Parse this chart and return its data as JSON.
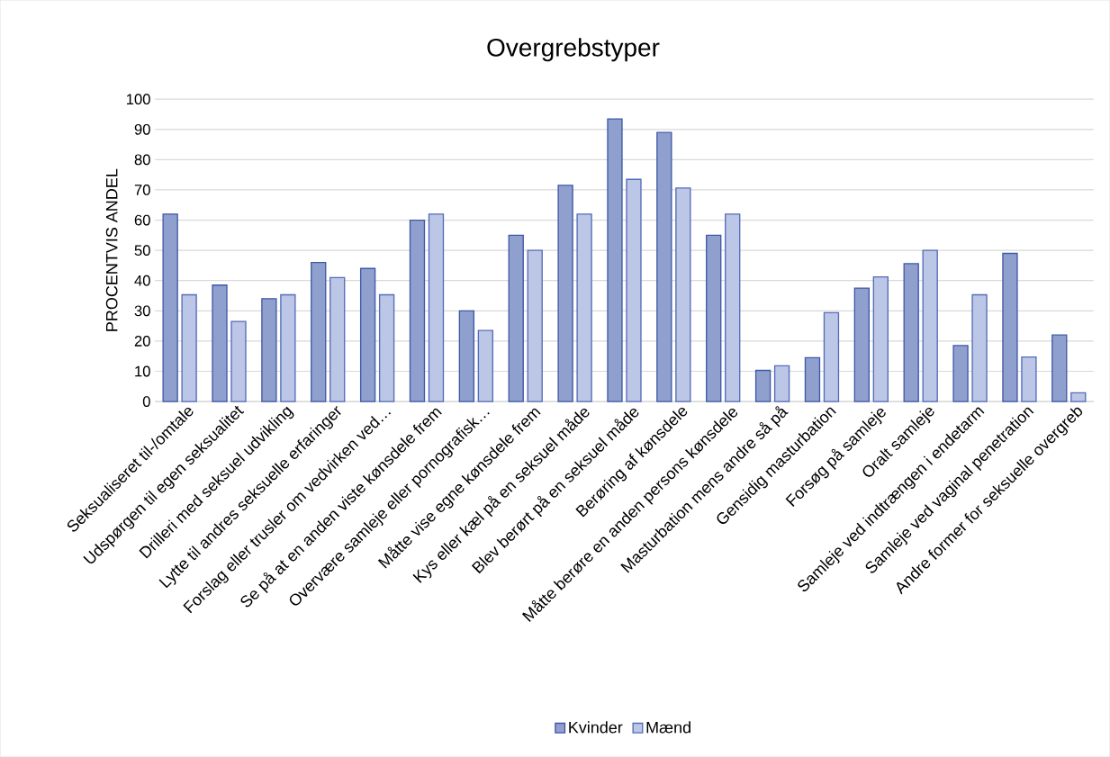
{
  "chart_data": {
    "type": "bar",
    "title": "Overgrebstyper",
    "ylabel": "PROCENTVIS ANDEL",
    "categories": [
      "Seksualiseret til-/omtale",
      "Udspørgen til egen seksualitet",
      "Drilleri med seksuel udvikling",
      "Lytte til andres seksuelle erfaringer",
      "Forslag eller trusler om vedvirken ved…",
      "Se på at en anden viste kønsdele frem",
      "Overvære samleje eller pornografisk…",
      "Måtte vise egne kønsdele frem",
      "Kys eller kæl på en seksuel måde",
      "Blev berørt på en seksuel måde",
      "Berøring af kønsdele",
      "Måtte berøre en anden persons kønsdele",
      "Masturbation mens andre så på",
      "Gensidig masturbation",
      "Forsøg på samleje",
      "Oralt samleje",
      "Samleje ved indtrængen i endetarm",
      "Samleje ved vaginal penetration",
      "Andre former for seksuelle overgreb"
    ],
    "series": [
      {
        "name": "Kvinder",
        "color": "#8fa0cf",
        "values": [
          62,
          38.5,
          34,
          46,
          44,
          60,
          30,
          55,
          71.5,
          93.5,
          89,
          55,
          10.3,
          14.5,
          37.5,
          45.6,
          18.5,
          49,
          22
        ]
      },
      {
        "name": "Mænd",
        "color": "#bcc6e6",
        "values": [
          35.3,
          26.5,
          35.3,
          41,
          35.3,
          62,
          23.5,
          50,
          62,
          73.5,
          70.6,
          62,
          11.8,
          29.4,
          41.2,
          50,
          35.3,
          14.7,
          2.9
        ]
      }
    ],
    "ylim": [
      0,
      100
    ],
    "yticks": [
      0,
      10,
      20,
      30,
      40,
      50,
      60,
      70,
      80,
      90,
      100
    ],
    "grid": "y",
    "legend": "bottom"
  }
}
